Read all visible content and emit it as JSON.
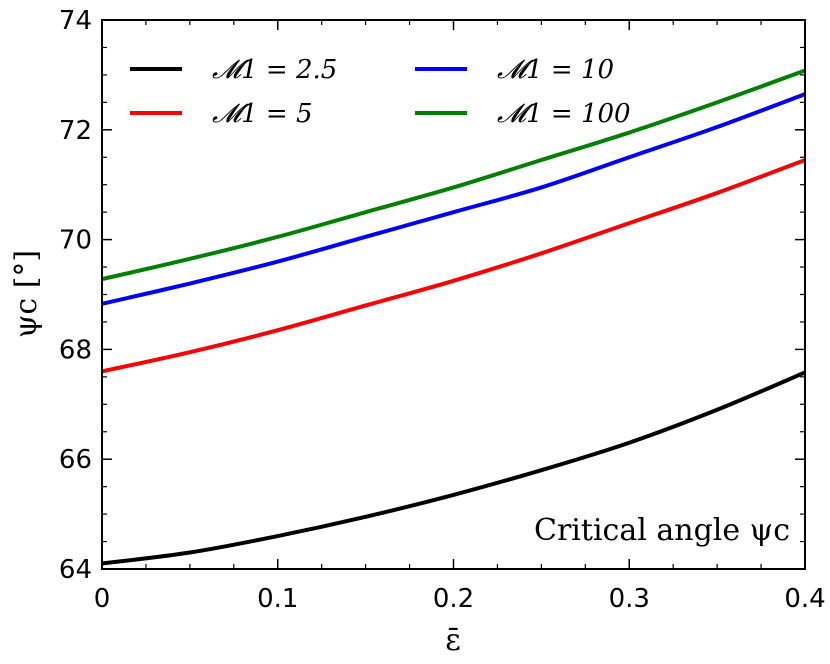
{
  "chart_data": {
    "type": "line",
    "title": "",
    "xlabel": "ε̄",
    "ylabel": "ψc [°]",
    "xlim": [
      0,
      0.4
    ],
    "ylim": [
      64,
      74
    ],
    "x_ticks": [
      0,
      0.1,
      0.2,
      0.3,
      0.4
    ],
    "x_tick_labels": [
      "0",
      "0.1",
      "0.2",
      "0.3",
      "0.4"
    ],
    "y_ticks": [
      64,
      66,
      68,
      70,
      72,
      74
    ],
    "y_tick_labels": [
      "64",
      "66",
      "68",
      "70",
      "72",
      "74"
    ],
    "annotation": "Critical angle ψc",
    "legend_position": "top-left",
    "series": [
      {
        "name": "𝓜1 = 2.5",
        "color": "#000000",
        "x": [
          0,
          0.05,
          0.1,
          0.15,
          0.2,
          0.25,
          0.3,
          0.35,
          0.4
        ],
        "values": [
          64.1,
          64.3,
          64.6,
          64.95,
          65.35,
          65.8,
          66.3,
          66.9,
          67.58
        ]
      },
      {
        "name": "𝓜1 = 5",
        "color": "#ff0000",
        "x": [
          0,
          0.05,
          0.1,
          0.15,
          0.2,
          0.25,
          0.3,
          0.35,
          0.4
        ],
        "values": [
          67.6,
          67.95,
          68.35,
          68.8,
          69.25,
          69.75,
          70.3,
          70.85,
          71.45
        ]
      },
      {
        "name": "𝓜1 = 10",
        "color": "#0000ff",
        "x": [
          0,
          0.05,
          0.1,
          0.15,
          0.2,
          0.25,
          0.3,
          0.35,
          0.4
        ],
        "values": [
          68.83,
          69.2,
          69.6,
          70.05,
          70.5,
          70.95,
          71.5,
          72.05,
          72.65
        ]
      },
      {
        "name": "𝓜1 = 100",
        "color": "#007f00",
        "x": [
          0,
          0.05,
          0.1,
          0.15,
          0.2,
          0.25,
          0.3,
          0.35,
          0.4
        ],
        "values": [
          69.28,
          69.65,
          70.05,
          70.5,
          70.95,
          71.45,
          71.95,
          72.5,
          73.08
        ]
      }
    ]
  }
}
